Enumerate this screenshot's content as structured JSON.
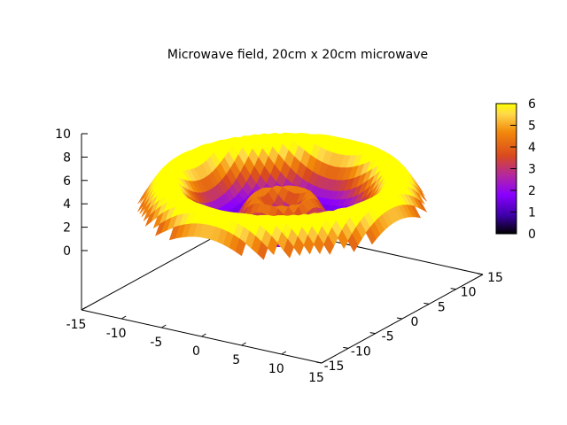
{
  "chart_data": {
    "type": "surface",
    "title": "Microwave field, 20cm x 20cm microwave",
    "x_ticks": [
      -15,
      -10,
      -5,
      0,
      5,
      10,
      15
    ],
    "y_ticks": [
      -15,
      -10,
      -5,
      0,
      5,
      10,
      15
    ],
    "z_ticks": [
      0,
      2,
      4,
      6,
      8,
      10
    ],
    "xlim": [
      -15,
      15
    ],
    "ylim": [
      -15,
      15
    ],
    "zlim": [
      0,
      10
    ],
    "colorbar": {
      "ticks": [
        0,
        1,
        2,
        3,
        4,
        5,
        6
      ],
      "range": [
        0,
        6
      ],
      "colors": [
        "#000000",
        "#3d00a8",
        "#8a00ff",
        "#b4289e",
        "#d94a1e",
        "#f2880b",
        "#ffd84a",
        "#ffff00"
      ]
    },
    "surface": {
      "description_values": {
        "outer_ring_radius": 12,
        "outer_ring_peak": 6,
        "inner_ring_radius": 3,
        "inner_ring_peak": 4,
        "center_value": 3,
        "edge_value": 1
      }
    }
  }
}
